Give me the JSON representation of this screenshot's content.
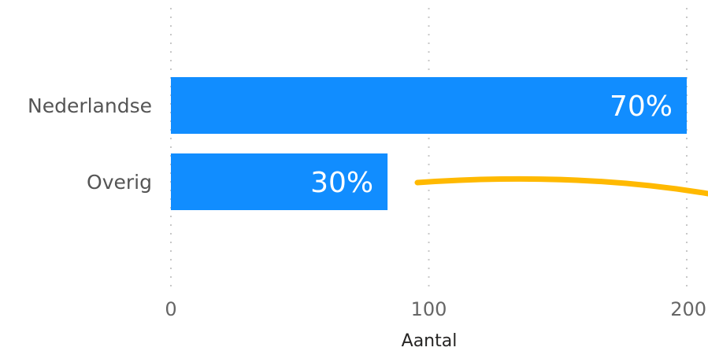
{
  "chart_data": {
    "type": "bar",
    "orientation": "horizontal",
    "categories": [
      "Nederlandse",
      "Overig"
    ],
    "values": [
      200,
      84
    ],
    "data_labels": [
      "70%",
      "30%"
    ],
    "title": "",
    "xlabel": "Aantal",
    "ylabel": "",
    "xlim": [
      0,
      200
    ],
    "x_ticks": [
      "0",
      "100",
      "200"
    ],
    "grid": true,
    "legend": "none",
    "bar_color": "#118DFF",
    "label_color": "#FFFFFF",
    "annotation_line_color": "#FFB900"
  }
}
